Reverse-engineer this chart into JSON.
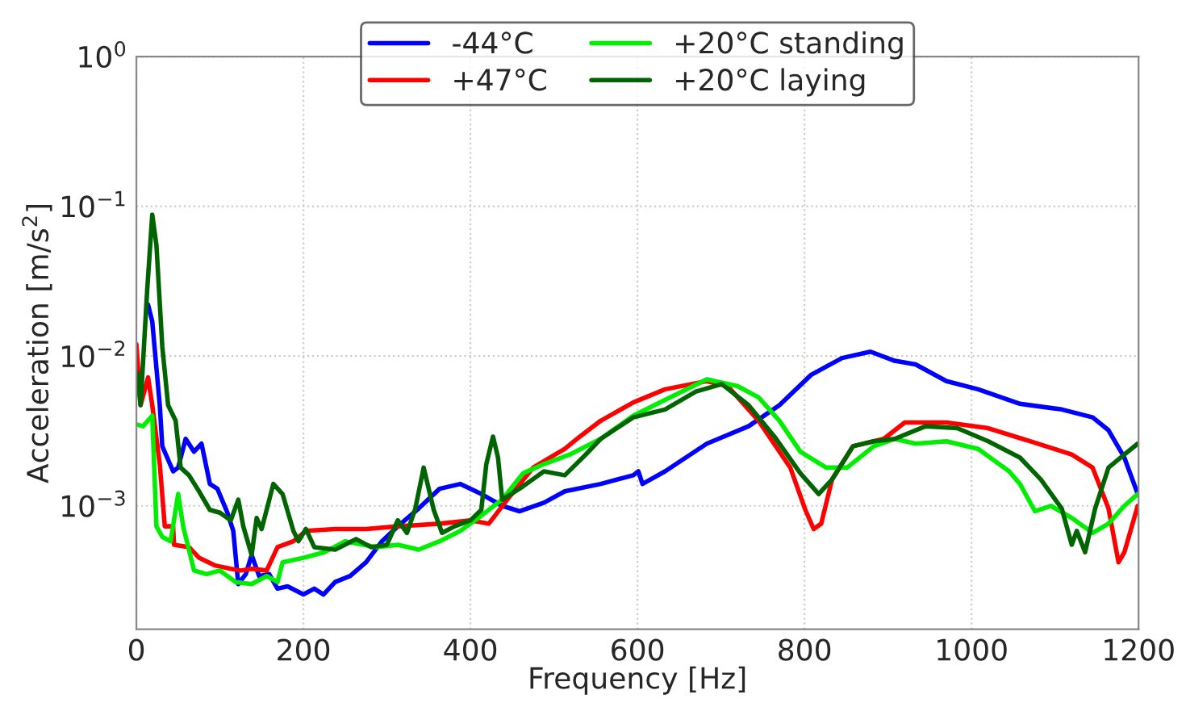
{
  "chart_data": {
    "type": "line",
    "xlabel": "Frequency [Hz]",
    "ylabel": "Acceleration [m/s$^{2}$]",
    "xlim": [
      0,
      1200
    ],
    "xticks": [
      0,
      200,
      400,
      600,
      800,
      1000,
      1200
    ],
    "ylim": [
      0.00015,
      1
    ],
    "yticks": [
      {
        "value": 0.001,
        "label": "10$^{−3}$"
      },
      {
        "value": 0.01,
        "label": "10$^{−2}$"
      },
      {
        "value": 0.1,
        "label": "10$^{−1}$"
      },
      {
        "value": 1,
        "label": "10$^{0}$"
      }
    ],
    "log": "y",
    "grid": true,
    "legend": "top",
    "line_style": "solid",
    "marker": "none",
    "series": [
      {
        "name": "-44°C",
        "color": "#0000ff",
        "x": [
          14,
          19,
          28,
          31,
          44,
          50,
          59,
          69,
          78,
          88,
          97,
          109,
          116,
          122,
          131,
          138,
          147,
          159,
          169,
          181,
          200,
          213,
          224,
          238,
          256,
          275,
          294,
          313,
          338,
          363,
          388,
          413,
          438,
          459,
          488,
          513,
          556,
          595,
          601,
          606,
          633,
          683,
          733,
          770,
          808,
          845,
          879,
          908,
          933,
          970,
          1008,
          1058,
          1108,
          1145,
          1164,
          1183,
          1199
        ],
        "values": [
          0.022,
          0.017,
          0.0047,
          0.0025,
          0.0017,
          0.0018,
          0.0028,
          0.0023,
          0.0026,
          0.0014,
          0.0013,
          0.0009,
          0.00068,
          0.0003,
          0.00035,
          0.00047,
          0.00034,
          0.00035,
          0.00028,
          0.00029,
          0.000256,
          0.00028,
          0.000256,
          0.00031,
          0.00034,
          0.00042,
          0.00058,
          0.00073,
          0.00096,
          0.0013,
          0.0014,
          0.0012,
          0.001,
          0.00092,
          0.00105,
          0.00125,
          0.0014,
          0.0016,
          0.0017,
          0.0014,
          0.0017,
          0.0026,
          0.0034,
          0.0047,
          0.0075,
          0.0097,
          0.0107,
          0.0093,
          0.0088,
          0.0068,
          0.006,
          0.0048,
          0.0044,
          0.0039,
          0.0032,
          0.0021,
          0.0012
        ]
      },
      {
        "name": "+47°C",
        "color": "#ff0000",
        "x": [
          0,
          5,
          14,
          19,
          28,
          34,
          44,
          45,
          63,
          75,
          94,
          113,
          125,
          138,
          156,
          169,
          188,
          203,
          238,
          275,
          313,
          363,
          400,
          422,
          444,
          475,
          513,
          531,
          556,
          595,
          633,
          683,
          708,
          745,
          783,
          801,
          811,
          820,
          833,
          858,
          895,
          920,
          970,
          1020,
          1070,
          1120,
          1145,
          1164,
          1176,
          1183,
          1199
        ],
        "values": [
          0.012,
          0.0047,
          0.0072,
          0.0047,
          0.0019,
          0.00073,
          0.00073,
          0.00055,
          0.00053,
          0.00045,
          0.0004,
          0.00038,
          0.00037,
          0.00038,
          0.00037,
          0.00053,
          0.00058,
          0.00068,
          0.0007,
          0.0007,
          0.00073,
          0.00076,
          0.0008,
          0.00076,
          0.0011,
          0.0018,
          0.0024,
          0.0029,
          0.0037,
          0.0049,
          0.006,
          0.0068,
          0.0063,
          0.0037,
          0.0018,
          0.00094,
          0.0007,
          0.00076,
          0.0015,
          0.0025,
          0.0028,
          0.0036,
          0.0036,
          0.0033,
          0.0027,
          0.0022,
          0.0018,
          0.00096,
          0.00042,
          0.00049,
          0.001
        ]
      },
      {
        "name": "+20°C standing",
        "color": "#00ee00",
        "x": [
          0,
          8,
          19,
          24,
          31,
          41,
          50,
          56,
          69,
          84,
          100,
          119,
          138,
          156,
          169,
          175,
          200,
          225,
          250,
          288,
          313,
          338,
          363,
          388,
          413,
          438,
          463,
          488,
          519,
          556,
          595,
          633,
          683,
          720,
          745,
          770,
          795,
          826,
          851,
          883,
          908,
          933,
          970,
          1008,
          1045,
          1058,
          1076,
          1095,
          1120,
          1145,
          1164,
          1183,
          1199
        ],
        "values": [
          0.0035,
          0.0034,
          0.004,
          0.00073,
          0.00062,
          0.00058,
          0.0012,
          0.00073,
          0.00037,
          0.00035,
          0.00037,
          0.00031,
          0.0003,
          0.00034,
          0.00031,
          0.00042,
          0.00045,
          0.00049,
          0.00058,
          0.00053,
          0.00055,
          0.00051,
          0.00058,
          0.00068,
          0.00086,
          0.0011,
          0.00165,
          0.0019,
          0.0022,
          0.0028,
          0.004,
          0.0051,
          0.007,
          0.0063,
          0.0053,
          0.0037,
          0.0023,
          0.0018,
          0.0018,
          0.0025,
          0.0028,
          0.0026,
          0.0027,
          0.0024,
          0.0017,
          0.0014,
          0.00092,
          0.001,
          0.00083,
          0.00066,
          0.00076,
          0.001,
          0.0012
        ]
      },
      {
        "name": "+20°C laying",
        "color": "#006400",
        "x": [
          1,
          5,
          13,
          19,
          24,
          31,
          38,
          47,
          53,
          63,
          75,
          88,
          100,
          113,
          122,
          128,
          138,
          144,
          150,
          164,
          175,
          188,
          194,
          203,
          213,
          238,
          263,
          281,
          300,
          313,
          324,
          334,
          344,
          356,
          366,
          381,
          400,
          413,
          419,
          427,
          433,
          438,
          463,
          488,
          513,
          538,
          556,
          595,
          633,
          670,
          701,
          733,
          764,
          795,
          817,
          833,
          858,
          883,
          908,
          945,
          983,
          1020,
          1058,
          1083,
          1108,
          1120,
          1126,
          1136,
          1148,
          1164,
          1183,
          1199
        ],
        "values": [
          0.0077,
          0.0047,
          0.028,
          0.088,
          0.055,
          0.0116,
          0.0047,
          0.0037,
          0.0018,
          0.0016,
          0.00125,
          0.00094,
          0.0009,
          0.0008,
          0.0011,
          0.00073,
          0.00047,
          0.00083,
          0.0007,
          0.0014,
          0.0012,
          0.00068,
          0.00058,
          0.0007,
          0.00053,
          0.00051,
          0.0006,
          0.00053,
          0.00055,
          0.0008,
          0.00066,
          0.00096,
          0.0018,
          0.00094,
          0.00066,
          0.00073,
          0.0008,
          0.00094,
          0.0019,
          0.0029,
          0.0021,
          0.0011,
          0.00135,
          0.0017,
          0.0016,
          0.0022,
          0.0028,
          0.0039,
          0.0044,
          0.0058,
          0.0065,
          0.0047,
          0.0029,
          0.00165,
          0.0012,
          0.0015,
          0.0025,
          0.0027,
          0.0028,
          0.0034,
          0.0033,
          0.0027,
          0.0021,
          0.0015,
          0.00096,
          0.00055,
          0.00068,
          0.00049,
          0.00096,
          0.0018,
          0.0022,
          0.0026
        ]
      }
    ]
  }
}
